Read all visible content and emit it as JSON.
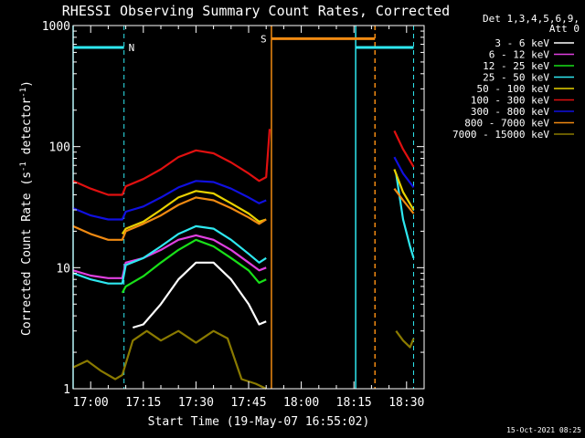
{
  "chart_data": {
    "type": "line",
    "title": "RHESSI Observing Summary Count Rates, Corrected",
    "xlabel": "Start Time (19-May-07 16:55:02)",
    "ylabel": "Corrected Count Rate (s⁻¹ detector⁻¹)",
    "ylabel_main": "Corrected Count Rate (s",
    "ylabel_sup1": "-1",
    "ylabel_mid": " detector",
    "ylabel_sup2": "-1",
    "ylabel_end": ")",
    "y_scale": "log",
    "ylim": [
      1,
      1000
    ],
    "xlim_minutes_after_1655": [
      0,
      100
    ],
    "y_ticks": [
      {
        "value": 1,
        "label": "1"
      },
      {
        "value": 10,
        "label": "10"
      },
      {
        "value": 100,
        "label": "100"
      },
      {
        "value": 1000,
        "label": "1000"
      }
    ],
    "x_ticks": [
      {
        "t": 5,
        "label": "17:00"
      },
      {
        "t": 20,
        "label": "17:15"
      },
      {
        "t": 35,
        "label": "17:30"
      },
      {
        "t": 50,
        "label": "17:45"
      },
      {
        "t": 65,
        "label": "18:00"
      },
      {
        "t": 80,
        "label": "18:15"
      },
      {
        "t": 95,
        "label": "18:30"
      }
    ],
    "legend_header": [
      "Det 1,3,4,5,6,9,",
      "Att 0"
    ],
    "legend_position": "right",
    "grid": false,
    "data_gap_minutes": [
      56.5,
      91.5
    ],
    "series": [
      {
        "name": "3 - 6 keV",
        "color": "#ffffff",
        "x": [
          17,
          20,
          25,
          30,
          35,
          40,
          45,
          50,
          53,
          55
        ],
        "y": [
          3.2,
          3.4,
          5,
          8,
          11,
          11,
          8,
          5,
          3.4,
          3.6
        ],
        "x2": [],
        "y2": []
      },
      {
        "name": "6 - 12 keV",
        "color": "#e040e0",
        "x": [
          0,
          5,
          10,
          14,
          15,
          20,
          25,
          30,
          35,
          40,
          45,
          50,
          53,
          55
        ],
        "y": [
          9.5,
          8.6,
          8.2,
          8.2,
          11,
          12,
          14,
          17,
          18.5,
          17,
          14,
          11,
          9.5,
          10
        ],
        "x2": [],
        "y2": []
      },
      {
        "name": "12 - 25 keV",
        "color": "#19e019",
        "x": [
          14,
          15,
          20,
          25,
          30,
          35,
          40,
          45,
          50,
          53,
          55
        ],
        "y": [
          6.2,
          7,
          8.5,
          11,
          14,
          17,
          15,
          12,
          9.5,
          7.5,
          8
        ],
        "x2": [],
        "y2": []
      },
      {
        "name": "25 - 50 keV",
        "color": "#2ee8f0",
        "x": [
          0,
          5,
          10,
          14,
          15,
          20,
          25,
          30,
          35,
          40,
          45,
          50,
          53,
          55
        ],
        "y": [
          9,
          8,
          7.4,
          7.4,
          10.5,
          12,
          15,
          19,
          22,
          21,
          17,
          13,
          11,
          12
        ],
        "x2": [
          92,
          94,
          96,
          97
        ],
        "y2": [
          60,
          25,
          15,
          12
        ]
      },
      {
        "name": "50 - 100 keV",
        "color": "#e8d200",
        "x": [
          14,
          15,
          20,
          25,
          30,
          35,
          40,
          45,
          50,
          53,
          55
        ],
        "y": [
          19,
          21,
          24,
          30,
          38,
          43,
          41,
          34,
          28,
          24,
          25
        ],
        "x2": [
          91.5,
          94,
          97
        ],
        "y2": [
          65,
          42,
          30
        ]
      },
      {
        "name": "100 - 300 keV",
        "color": "#e01010",
        "x": [
          0,
          5,
          10,
          14,
          15,
          20,
          25,
          30,
          35,
          40,
          45,
          50,
          53,
          55,
          56
        ],
        "y": [
          52,
          45,
          40,
          40,
          47,
          54,
          65,
          82,
          93,
          88,
          74,
          60,
          52,
          56,
          140
        ],
        "x2": [
          91.5,
          94,
          97
        ],
        "y2": [
          135,
          95,
          68
        ]
      },
      {
        "name": "300 - 800 keV",
        "color": "#1010e0",
        "x": [
          0,
          5,
          10,
          14,
          15,
          20,
          25,
          30,
          35,
          40,
          45,
          50,
          53,
          55
        ],
        "y": [
          31,
          27,
          25,
          25,
          29,
          32,
          38,
          46,
          52,
          51,
          45,
          38,
          34,
          36
        ],
        "x2": [
          91.5,
          94,
          97
        ],
        "y2": [
          82,
          60,
          46
        ]
      },
      {
        "name": "800 - 7000 keV",
        "color": "#f08a12",
        "x": [
          0,
          5,
          10,
          14,
          15,
          20,
          25,
          30,
          35,
          40,
          45,
          50,
          53,
          55
        ],
        "y": [
          22,
          19,
          17,
          17,
          20,
          23,
          27,
          33,
          38,
          36,
          31,
          26,
          23,
          25
        ],
        "x2": [
          91.5,
          94,
          97
        ],
        "y2": [
          45,
          36,
          28
        ]
      },
      {
        "name": "7000 - 15000 keV",
        "color": "#8a7a00",
        "x": [
          0,
          4,
          8,
          12,
          14,
          17,
          21,
          25,
          30,
          35,
          40,
          44,
          48,
          52,
          55
        ],
        "y": [
          1.5,
          1.7,
          1.4,
          1.2,
          1.3,
          2.5,
          3,
          2.5,
          3,
          2.4,
          3,
          2.6,
          1.2,
          1.1,
          1
        ],
        "x2": [
          92,
          94,
          96,
          97
        ],
        "y2": [
          3,
          2.5,
          2.2,
          2.6
        ]
      }
    ],
    "annotations": {
      "night_label": "N",
      "saa_label": "S",
      "night_bars": [
        [
          0,
          14.5
        ],
        [
          80.5,
          97
        ]
      ],
      "night_bar_level": 660,
      "night_vlines": [
        0,
        14.5,
        80.5,
        97
      ],
      "saa_bar": [
        56.5,
        86
      ],
      "saa_bar_level": 780,
      "saa_vlines": [
        56.5,
        86
      ],
      "colors": {
        "night": "#2ee8f0",
        "saa": "#f08a12"
      }
    }
  },
  "footer": {
    "timestamp": "15-Oct-2021 08:25"
  }
}
